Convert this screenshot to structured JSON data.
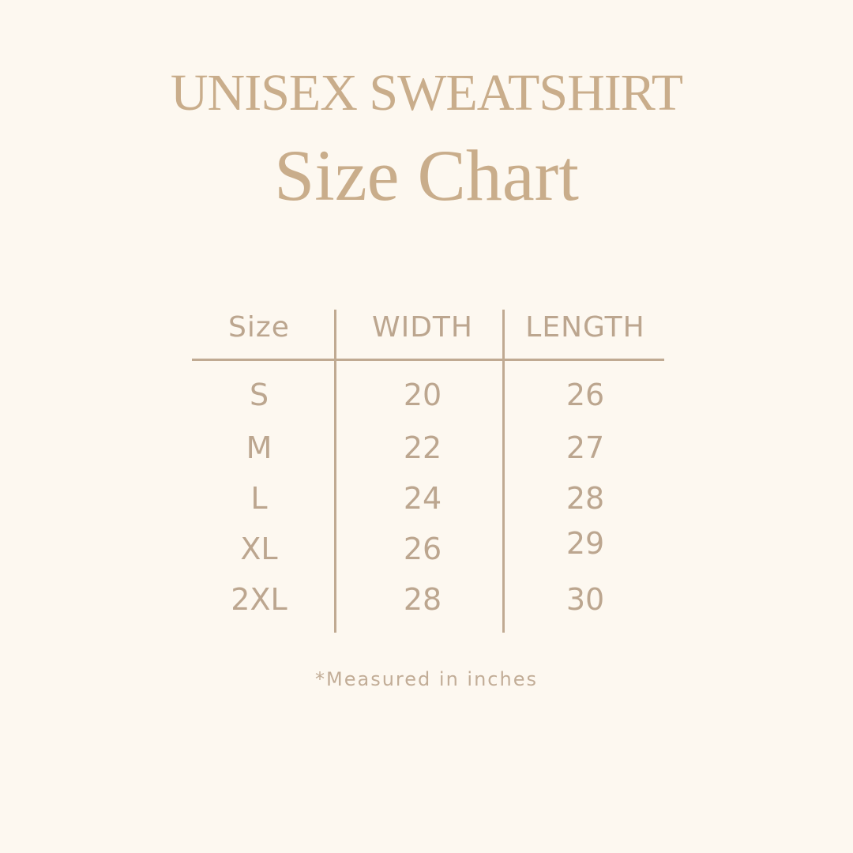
{
  "title": "UNISEX SWEATSHIRT",
  "subtitle": "Size Chart",
  "table": {
    "headers": [
      "Size",
      "WIDTH",
      "LENGTH"
    ],
    "rows": [
      [
        "S",
        "20",
        "26"
      ],
      [
        "M",
        "22",
        "27"
      ],
      [
        "L",
        "24",
        "28"
      ],
      [
        "XL",
        "26",
        "29"
      ],
      [
        "2XL",
        "28",
        "30"
      ]
    ]
  },
  "footnote": "*Measured in inches",
  "colors": {
    "background": "#fdf8f0",
    "text": "#bca68f",
    "title": "#c9ad8b",
    "rules": "#c0aa92"
  }
}
